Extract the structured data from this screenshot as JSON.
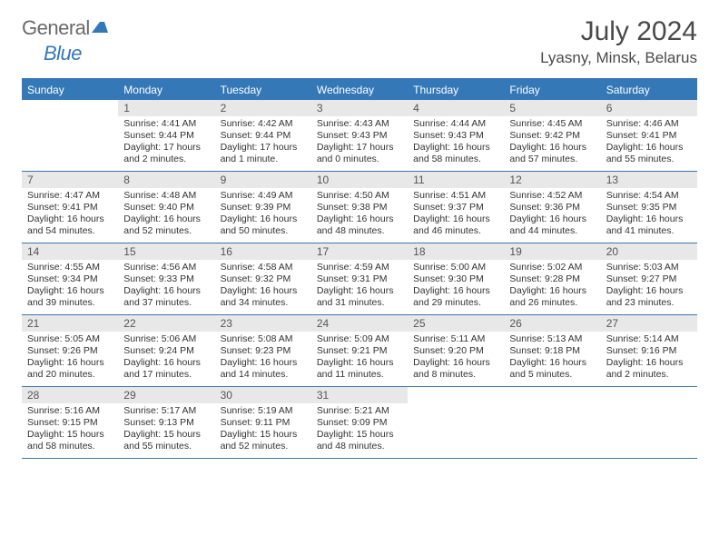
{
  "logo": {
    "text1": "General",
    "text2": "Blue"
  },
  "title": "July 2024",
  "location": "Lyasny, Minsk, Belarus",
  "colors": {
    "header_bg": "#3478b8",
    "header_text": "#ffffff",
    "daynum_bg": "#e8e8e8",
    "daynum_text": "#555555",
    "body_text": "#333333",
    "border": "#3478b8",
    "logo_gray": "#6a6a6a",
    "logo_blue": "#3478b8",
    "title_color": "#4a4a4a"
  },
  "weekdays": [
    "Sunday",
    "Monday",
    "Tuesday",
    "Wednesday",
    "Thursday",
    "Friday",
    "Saturday"
  ],
  "weeks": [
    [
      {
        "num": "",
        "sunrise": "",
        "sunset": "",
        "daylight": ""
      },
      {
        "num": "1",
        "sunrise": "Sunrise: 4:41 AM",
        "sunset": "Sunset: 9:44 PM",
        "daylight": "Daylight: 17 hours and 2 minutes."
      },
      {
        "num": "2",
        "sunrise": "Sunrise: 4:42 AM",
        "sunset": "Sunset: 9:44 PM",
        "daylight": "Daylight: 17 hours and 1 minute."
      },
      {
        "num": "3",
        "sunrise": "Sunrise: 4:43 AM",
        "sunset": "Sunset: 9:43 PM",
        "daylight": "Daylight: 17 hours and 0 minutes."
      },
      {
        "num": "4",
        "sunrise": "Sunrise: 4:44 AM",
        "sunset": "Sunset: 9:43 PM",
        "daylight": "Daylight: 16 hours and 58 minutes."
      },
      {
        "num": "5",
        "sunrise": "Sunrise: 4:45 AM",
        "sunset": "Sunset: 9:42 PM",
        "daylight": "Daylight: 16 hours and 57 minutes."
      },
      {
        "num": "6",
        "sunrise": "Sunrise: 4:46 AM",
        "sunset": "Sunset: 9:41 PM",
        "daylight": "Daylight: 16 hours and 55 minutes."
      }
    ],
    [
      {
        "num": "7",
        "sunrise": "Sunrise: 4:47 AM",
        "sunset": "Sunset: 9:41 PM",
        "daylight": "Daylight: 16 hours and 54 minutes."
      },
      {
        "num": "8",
        "sunrise": "Sunrise: 4:48 AM",
        "sunset": "Sunset: 9:40 PM",
        "daylight": "Daylight: 16 hours and 52 minutes."
      },
      {
        "num": "9",
        "sunrise": "Sunrise: 4:49 AM",
        "sunset": "Sunset: 9:39 PM",
        "daylight": "Daylight: 16 hours and 50 minutes."
      },
      {
        "num": "10",
        "sunrise": "Sunrise: 4:50 AM",
        "sunset": "Sunset: 9:38 PM",
        "daylight": "Daylight: 16 hours and 48 minutes."
      },
      {
        "num": "11",
        "sunrise": "Sunrise: 4:51 AM",
        "sunset": "Sunset: 9:37 PM",
        "daylight": "Daylight: 16 hours and 46 minutes."
      },
      {
        "num": "12",
        "sunrise": "Sunrise: 4:52 AM",
        "sunset": "Sunset: 9:36 PM",
        "daylight": "Daylight: 16 hours and 44 minutes."
      },
      {
        "num": "13",
        "sunrise": "Sunrise: 4:54 AM",
        "sunset": "Sunset: 9:35 PM",
        "daylight": "Daylight: 16 hours and 41 minutes."
      }
    ],
    [
      {
        "num": "14",
        "sunrise": "Sunrise: 4:55 AM",
        "sunset": "Sunset: 9:34 PM",
        "daylight": "Daylight: 16 hours and 39 minutes."
      },
      {
        "num": "15",
        "sunrise": "Sunrise: 4:56 AM",
        "sunset": "Sunset: 9:33 PM",
        "daylight": "Daylight: 16 hours and 37 minutes."
      },
      {
        "num": "16",
        "sunrise": "Sunrise: 4:58 AM",
        "sunset": "Sunset: 9:32 PM",
        "daylight": "Daylight: 16 hours and 34 minutes."
      },
      {
        "num": "17",
        "sunrise": "Sunrise: 4:59 AM",
        "sunset": "Sunset: 9:31 PM",
        "daylight": "Daylight: 16 hours and 31 minutes."
      },
      {
        "num": "18",
        "sunrise": "Sunrise: 5:00 AM",
        "sunset": "Sunset: 9:30 PM",
        "daylight": "Daylight: 16 hours and 29 minutes."
      },
      {
        "num": "19",
        "sunrise": "Sunrise: 5:02 AM",
        "sunset": "Sunset: 9:28 PM",
        "daylight": "Daylight: 16 hours and 26 minutes."
      },
      {
        "num": "20",
        "sunrise": "Sunrise: 5:03 AM",
        "sunset": "Sunset: 9:27 PM",
        "daylight": "Daylight: 16 hours and 23 minutes."
      }
    ],
    [
      {
        "num": "21",
        "sunrise": "Sunrise: 5:05 AM",
        "sunset": "Sunset: 9:26 PM",
        "daylight": "Daylight: 16 hours and 20 minutes."
      },
      {
        "num": "22",
        "sunrise": "Sunrise: 5:06 AM",
        "sunset": "Sunset: 9:24 PM",
        "daylight": "Daylight: 16 hours and 17 minutes."
      },
      {
        "num": "23",
        "sunrise": "Sunrise: 5:08 AM",
        "sunset": "Sunset: 9:23 PM",
        "daylight": "Daylight: 16 hours and 14 minutes."
      },
      {
        "num": "24",
        "sunrise": "Sunrise: 5:09 AM",
        "sunset": "Sunset: 9:21 PM",
        "daylight": "Daylight: 16 hours and 11 minutes."
      },
      {
        "num": "25",
        "sunrise": "Sunrise: 5:11 AM",
        "sunset": "Sunset: 9:20 PM",
        "daylight": "Daylight: 16 hours and 8 minutes."
      },
      {
        "num": "26",
        "sunrise": "Sunrise: 5:13 AM",
        "sunset": "Sunset: 9:18 PM",
        "daylight": "Daylight: 16 hours and 5 minutes."
      },
      {
        "num": "27",
        "sunrise": "Sunrise: 5:14 AM",
        "sunset": "Sunset: 9:16 PM",
        "daylight": "Daylight: 16 hours and 2 minutes."
      }
    ],
    [
      {
        "num": "28",
        "sunrise": "Sunrise: 5:16 AM",
        "sunset": "Sunset: 9:15 PM",
        "daylight": "Daylight: 15 hours and 58 minutes."
      },
      {
        "num": "29",
        "sunrise": "Sunrise: 5:17 AM",
        "sunset": "Sunset: 9:13 PM",
        "daylight": "Daylight: 15 hours and 55 minutes."
      },
      {
        "num": "30",
        "sunrise": "Sunrise: 5:19 AM",
        "sunset": "Sunset: 9:11 PM",
        "daylight": "Daylight: 15 hours and 52 minutes."
      },
      {
        "num": "31",
        "sunrise": "Sunrise: 5:21 AM",
        "sunset": "Sunset: 9:09 PM",
        "daylight": "Daylight: 15 hours and 48 minutes."
      },
      {
        "num": "",
        "sunrise": "",
        "sunset": "",
        "daylight": ""
      },
      {
        "num": "",
        "sunrise": "",
        "sunset": "",
        "daylight": ""
      },
      {
        "num": "",
        "sunrise": "",
        "sunset": "",
        "daylight": ""
      }
    ]
  ]
}
